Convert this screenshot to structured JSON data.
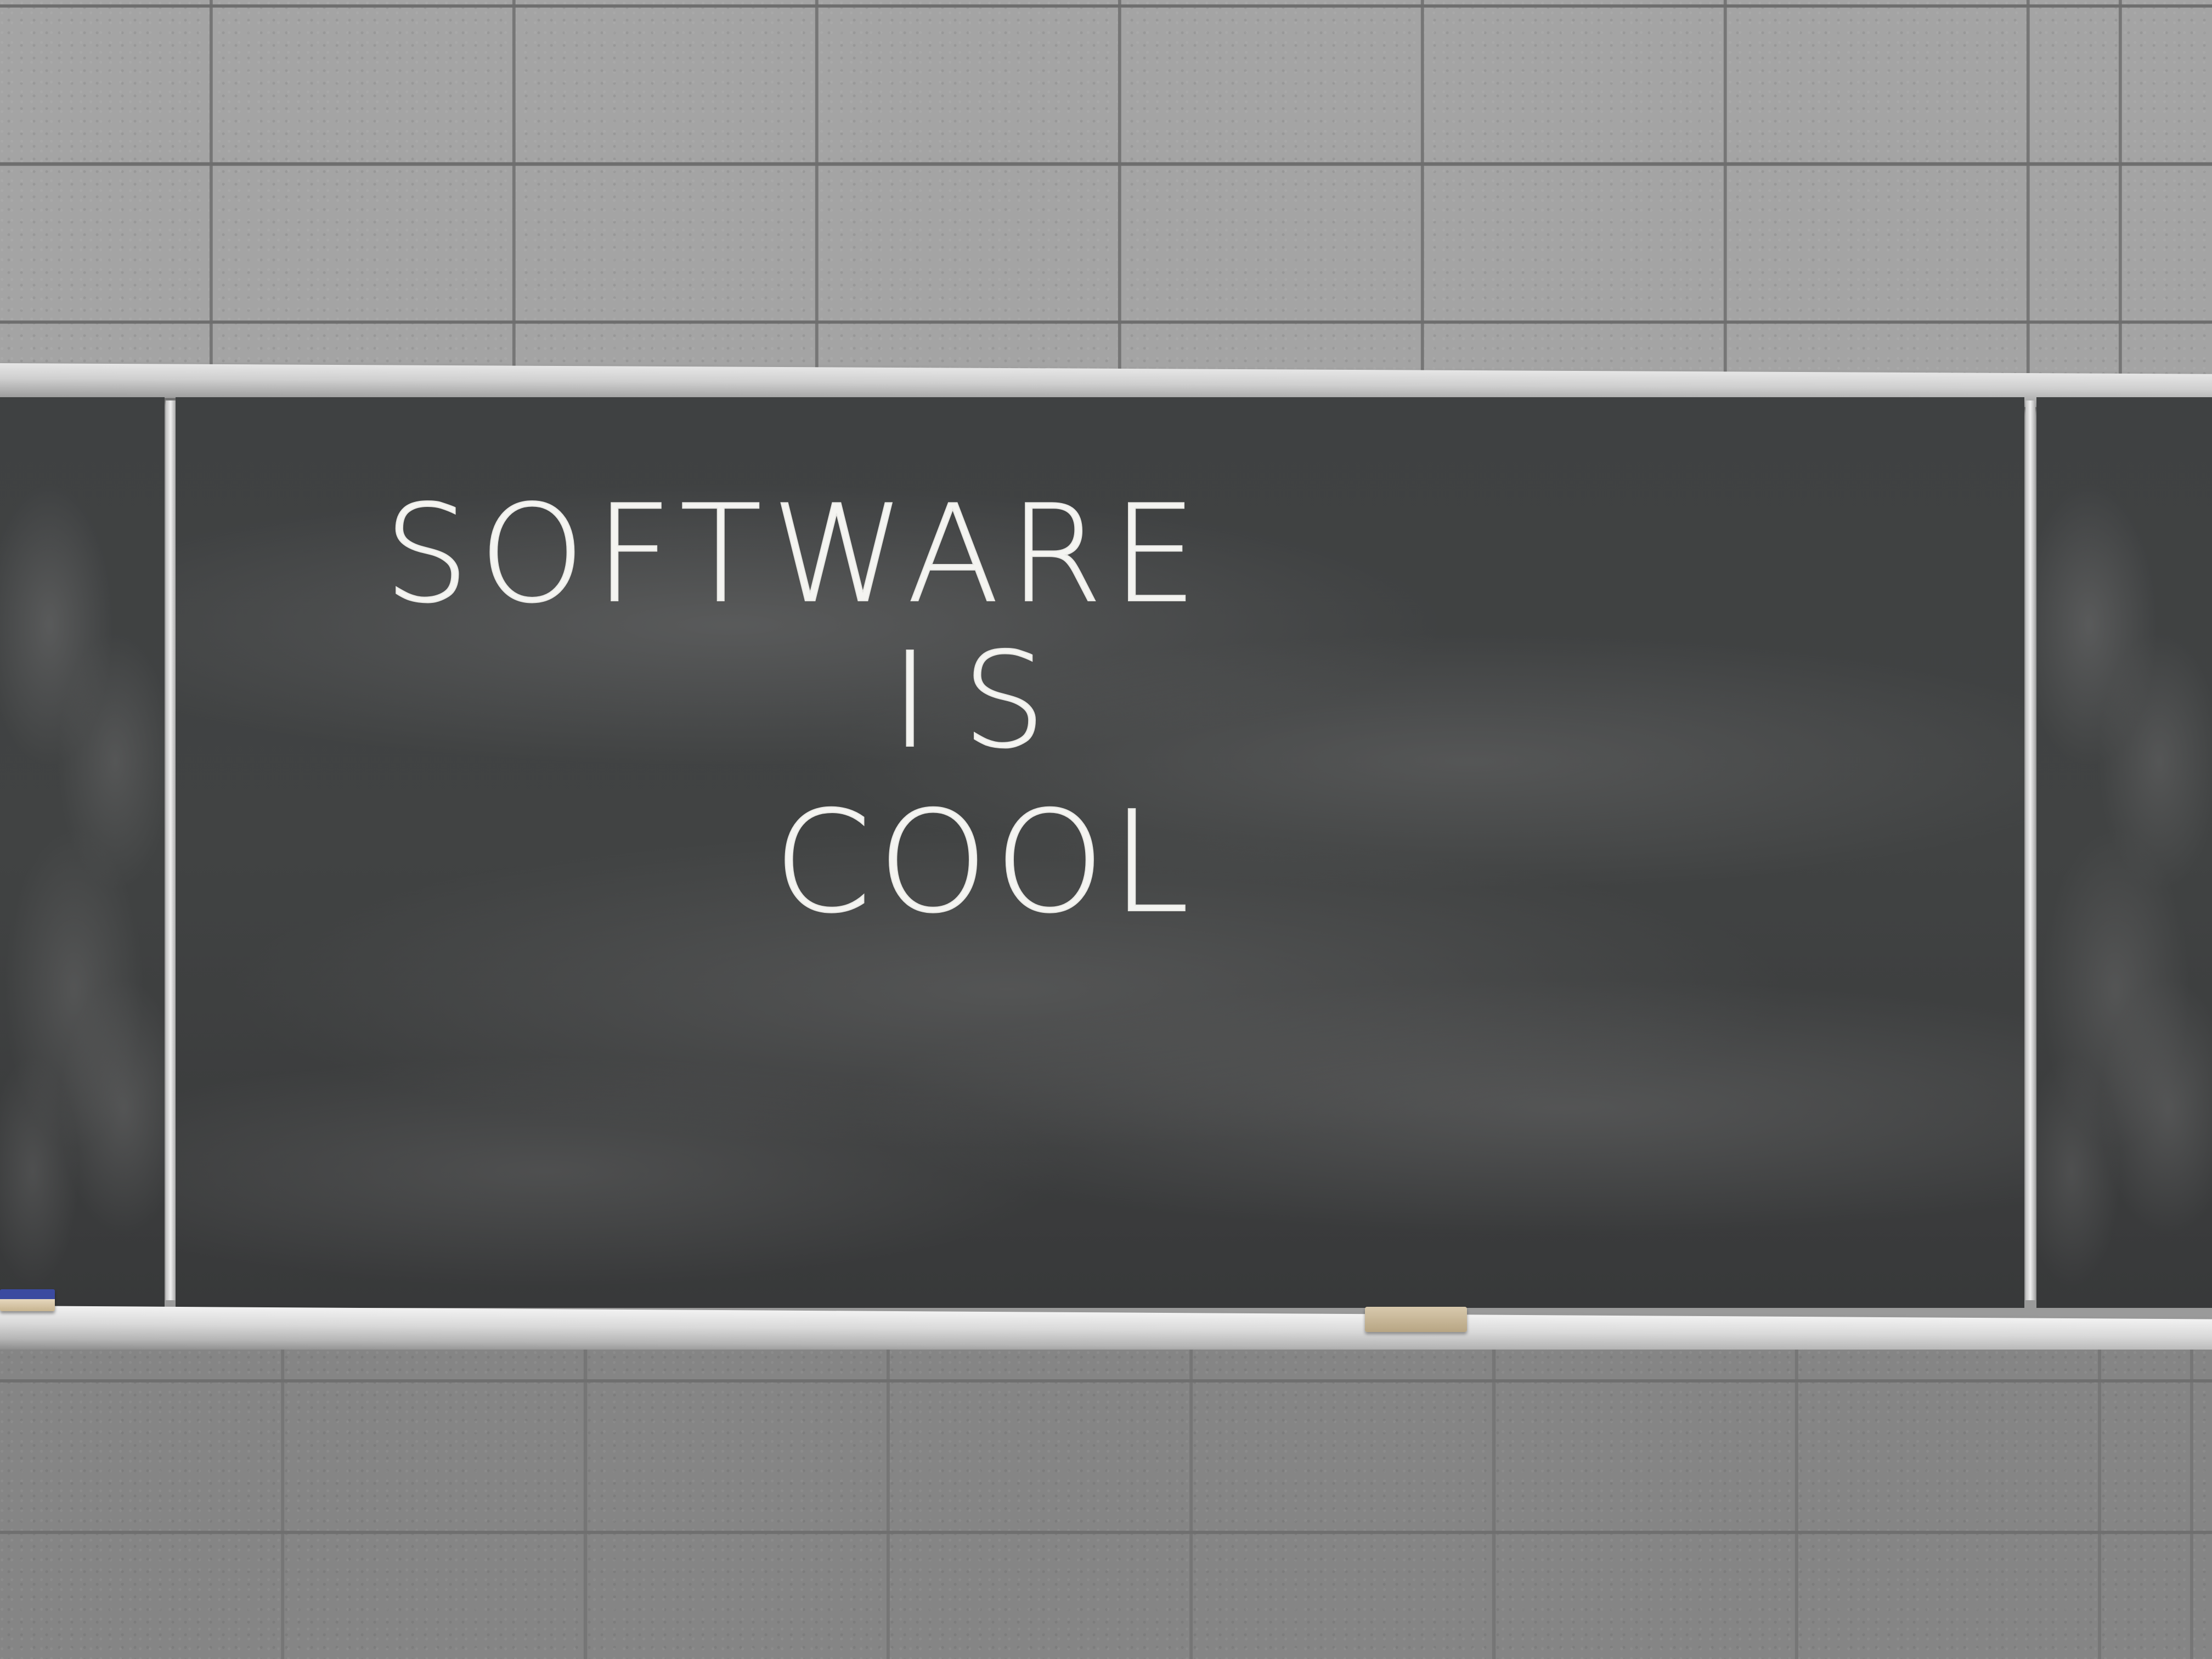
{
  "board": {
    "line1": "SOFTWARE",
    "line2": "IS",
    "line3": "COOL"
  },
  "colors": {
    "chalkboard": "#3f4142",
    "chalk": "#f4f4f1",
    "wall": "#a2a2a2",
    "tray": "#d9d9d9"
  }
}
